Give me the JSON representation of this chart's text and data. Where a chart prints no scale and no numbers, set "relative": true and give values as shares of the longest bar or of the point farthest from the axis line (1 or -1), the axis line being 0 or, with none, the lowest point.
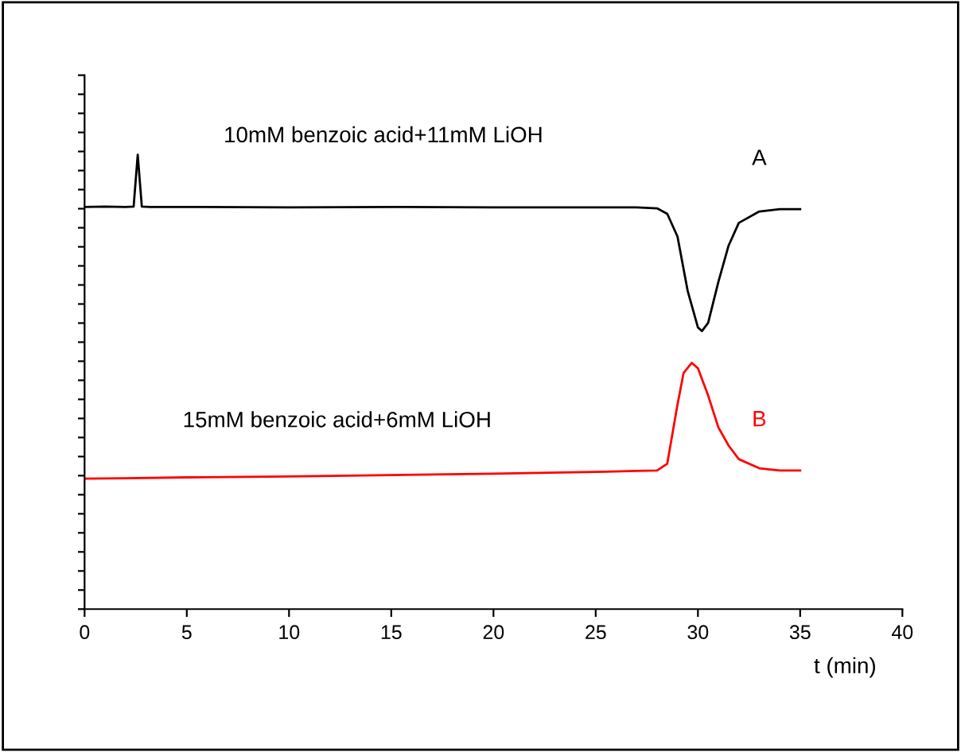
{
  "chart_data": {
    "type": "line",
    "relative": true,
    "xlabel": "t (min)",
    "xlim": [
      0,
      40
    ],
    "xticks": [
      0,
      5,
      10,
      15,
      20,
      25,
      30,
      35,
      40
    ],
    "tick_labels": "x",
    "grid": false,
    "legend": false,
    "marker": "none",
    "line_style": "solid",
    "annotations": [
      "10mM benzoic acid+11mM LiOH",
      "15mM benzoic acid+6mM LiOH"
    ],
    "series": [
      {
        "name": "A",
        "color": "#000000",
        "x": [
          0,
          1,
          2,
          2.4,
          2.6,
          2.8,
          3.2,
          5,
          10,
          15,
          20,
          25,
          27,
          28,
          28.5,
          29,
          29.5,
          30,
          30.2,
          30.5,
          31,
          31.5,
          32,
          33,
          34,
          35
        ],
        "values": [
          0.885,
          0.886,
          0.885,
          0.886,
          1.0,
          0.886,
          0.885,
          0.885,
          0.884,
          0.885,
          0.884,
          0.884,
          0.884,
          0.882,
          0.87,
          0.82,
          0.7,
          0.62,
          0.612,
          0.63,
          0.72,
          0.8,
          0.85,
          0.875,
          0.88,
          0.88
        ]
      },
      {
        "name": "B",
        "color": "#ff0000",
        "x": [
          0,
          2,
          5,
          10,
          15,
          20,
          25,
          27,
          28,
          28.5,
          29,
          29.3,
          29.7,
          30,
          30.5,
          31,
          31.5,
          32,
          33,
          34,
          35
        ],
        "values": [
          0.287,
          0.288,
          0.29,
          0.292,
          0.295,
          0.298,
          0.302,
          0.304,
          0.305,
          0.32,
          0.45,
          0.52,
          0.542,
          0.53,
          0.47,
          0.4,
          0.36,
          0.33,
          0.31,
          0.305,
          0.305
        ]
      }
    ]
  }
}
